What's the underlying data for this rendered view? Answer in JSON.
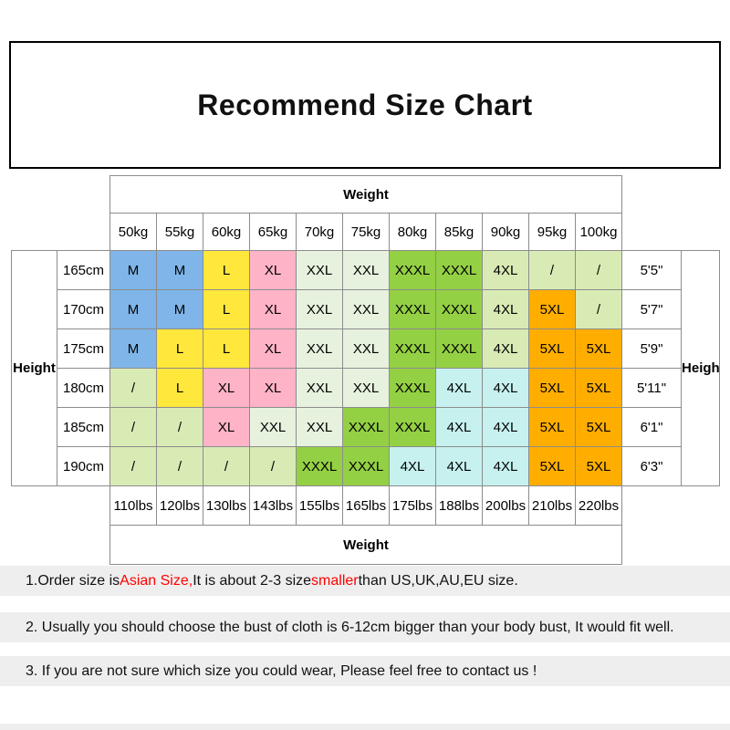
{
  "chart_data": {
    "type": "table",
    "title": "Recommend Size Chart",
    "column_axis_label": "Weight",
    "row_axis_label": "Height",
    "columns_kg": [
      "50kg",
      "55kg",
      "60kg",
      "65kg",
      "70kg",
      "75kg",
      "80kg",
      "85kg",
      "90kg",
      "95kg",
      "100kg"
    ],
    "columns_lbs": [
      "110lbs",
      "120lbs",
      "130lbs",
      "143lbs",
      "155lbs",
      "165lbs",
      "175lbs",
      "188lbs",
      "200lbs",
      "210lbs",
      "220lbs"
    ],
    "palette": {
      "blue": "#7FB5E8",
      "yellow": "#FFE73B",
      "pink": "#FFB3C7",
      "palegreen": "#E6F2DE",
      "green": "#94D044",
      "cyan": "#C6F1EF",
      "orange": "#FFAE00",
      "lightgreen": "#D8EBB5"
    },
    "rows": [
      {
        "height_cm": "165cm",
        "height_ft": "5'5\"",
        "sizes": [
          "M",
          "M",
          "L",
          "XL",
          "XXL",
          "XXL",
          "XXXL",
          "XXXL",
          "4XL",
          "/",
          "/"
        ],
        "colors": [
          "blue",
          "blue",
          "yellow",
          "pink",
          "palegreen",
          "palegreen",
          "green",
          "green",
          "lightgreen",
          "lightgreen",
          "lightgreen"
        ]
      },
      {
        "height_cm": "170cm",
        "height_ft": "5'7\"",
        "sizes": [
          "M",
          "M",
          "L",
          "XL",
          "XXL",
          "XXL",
          "XXXL",
          "XXXL",
          "4XL",
          "5XL",
          "/"
        ],
        "colors": [
          "blue",
          "blue",
          "yellow",
          "pink",
          "palegreen",
          "palegreen",
          "green",
          "green",
          "lightgreen",
          "orange",
          "lightgreen"
        ]
      },
      {
        "height_cm": "175cm",
        "height_ft": "5'9\"",
        "sizes": [
          "M",
          "L",
          "L",
          "XL",
          "XXL",
          "XXL",
          "XXXL",
          "XXXL",
          "4XL",
          "5XL",
          "5XL"
        ],
        "colors": [
          "blue",
          "yellow",
          "yellow",
          "pink",
          "palegreen",
          "palegreen",
          "green",
          "green",
          "lightgreen",
          "orange",
          "orange"
        ]
      },
      {
        "height_cm": "180cm",
        "height_ft": "5'11\"",
        "sizes": [
          "/",
          "L",
          "XL",
          "XL",
          "XXL",
          "XXL",
          "XXXL",
          "4XL",
          "4XL",
          "5XL",
          "5XL"
        ],
        "colors": [
          "lightgreen",
          "yellow",
          "pink",
          "pink",
          "palegreen",
          "palegreen",
          "green",
          "cyan",
          "cyan",
          "orange",
          "orange"
        ]
      },
      {
        "height_cm": "185cm",
        "height_ft": "6'1\"",
        "sizes": [
          "/",
          "/",
          "XL",
          "XXL",
          "XXL",
          "XXXL",
          "XXXL",
          "4XL",
          "4XL",
          "5XL",
          "5XL"
        ],
        "colors": [
          "lightgreen",
          "lightgreen",
          "pink",
          "palegreen",
          "palegreen",
          "green",
          "green",
          "cyan",
          "cyan",
          "orange",
          "orange"
        ]
      },
      {
        "height_cm": "190cm",
        "height_ft": "6'3\"",
        "sizes": [
          "/",
          "/",
          "/",
          "/",
          "XXXL",
          "XXXL",
          "4XL",
          "4XL",
          "4XL",
          "5XL",
          "5XL"
        ],
        "colors": [
          "lightgreen",
          "lightgreen",
          "lightgreen",
          "lightgreen",
          "green",
          "green",
          "cyan",
          "cyan",
          "cyan",
          "orange",
          "orange"
        ]
      }
    ]
  },
  "notes": [
    {
      "segments": [
        {
          "text": "1.Order size is ",
          "red": false
        },
        {
          "text": "Asian Size,",
          "red": true
        },
        {
          "text": " It is about 2-3 size ",
          "red": false
        },
        {
          "text": "smaller",
          "red": true
        },
        {
          "text": " than US,UK,AU,EU size.",
          "red": false
        }
      ]
    },
    {
      "segments": [
        {
          "text": "2. Usually you should choose the bust of cloth is 6-12cm bigger than your body bust, It would fit well.",
          "red": false
        }
      ]
    },
    {
      "segments": [
        {
          "text": "3. If you are not sure which size you could wear, Please feel free to contact us !",
          "red": false
        }
      ]
    }
  ],
  "colors": {
    "note_highlight": "#FF0000",
    "note_band_bg": "#EEEEEE",
    "table_border": "#8C8C8C"
  }
}
